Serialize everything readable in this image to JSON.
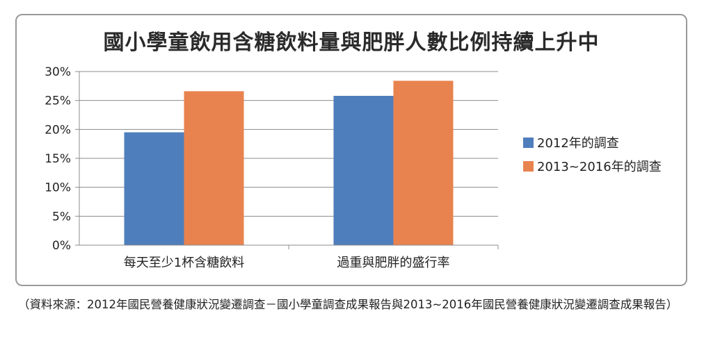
{
  "chart_data": {
    "type": "bar",
    "title": "國小學童飲用含糖飲料量與肥胖人數比例持續上升中",
    "categories": [
      "每天至少1杯含糖飲料",
      "過重與肥胖的盛行率"
    ],
    "series": [
      {
        "name": "2012年的調查",
        "values": [
          19.5,
          25.8
        ],
        "color": "#4f7ebd"
      },
      {
        "name": "2013~2016年的調查",
        "values": [
          26.6,
          28.4
        ],
        "color": "#e8834f"
      }
    ],
    "y_ticks": [
      "0%",
      "5%",
      "10%",
      "15%",
      "20%",
      "25%",
      "30%"
    ],
    "ylim": [
      0,
      30
    ],
    "y_unit": "%",
    "grid": true,
    "legend_position": "right"
  },
  "source_note": "（資料來源：2012年國民營養健康狀況變遷調查－國小學童調查成果報告與2013~2016年國民營養健康狀況變遷調查成果報告）"
}
